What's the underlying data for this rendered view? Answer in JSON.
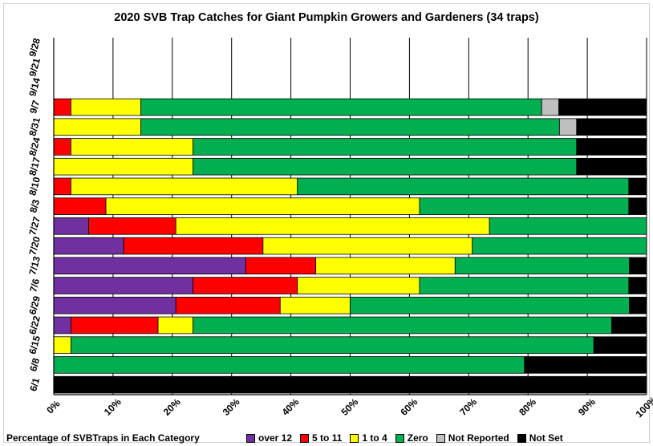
{
  "chart_data": {
    "type": "bar",
    "orientation": "horizontal",
    "stacked": "percent",
    "title": "2020 SVB Trap Catches for Giant Pumpkin Growers and  Gardeners (34 traps)",
    "xlabel": "Percentage of SVBTraps in Each Category",
    "categories": [
      "6/1",
      "6/8",
      "6/15",
      "6/22",
      "6/29",
      "7/6",
      "7/13",
      "7/20",
      "7/27",
      "8/3",
      "8/10",
      "8/17",
      "8/24",
      "8/31",
      "9/7",
      "9/14",
      "9/21",
      "9/28"
    ],
    "x_ticks": [
      "0%",
      "10%",
      "20%",
      "30%",
      "40%",
      "50%",
      "60%",
      "70%",
      "80%",
      "90%",
      "100%"
    ],
    "xlim": [
      0,
      100
    ],
    "grid": "vertical",
    "legend_position": "bottom",
    "series": [
      {
        "name": "over 12",
        "color": "#7030A0",
        "values": [
          0,
          0,
          0,
          2.9,
          20.6,
          23.5,
          32.4,
          11.8,
          5.9,
          0,
          0,
          0,
          0,
          0,
          0,
          0,
          0,
          0
        ]
      },
      {
        "name": "5 to 11",
        "color": "#FF0000",
        "values": [
          0,
          0,
          0,
          14.7,
          17.6,
          17.6,
          11.8,
          23.5,
          14.7,
          8.8,
          2.9,
          0,
          2.9,
          0,
          2.9,
          0,
          0,
          0
        ]
      },
      {
        "name": "1 to 4",
        "color": "#FFFF00",
        "values": [
          0,
          0,
          2.9,
          5.9,
          11.8,
          20.6,
          23.5,
          35.3,
          52.9,
          52.9,
          38.2,
          23.5,
          20.6,
          14.7,
          11.8,
          0,
          0,
          0
        ]
      },
      {
        "name": "Zero",
        "color": "#00B050",
        "values": [
          0,
          79.4,
          88.2,
          70.6,
          47.1,
          35.3,
          29.4,
          29.4,
          26.5,
          35.3,
          55.9,
          64.7,
          64.7,
          70.6,
          67.6,
          0,
          0,
          0
        ]
      },
      {
        "name": "Not Reported",
        "color": "#BFBFBF",
        "values": [
          0,
          0,
          0,
          0,
          0,
          0,
          0,
          0,
          0,
          0,
          0,
          0,
          0,
          2.9,
          2.9,
          0,
          0,
          0
        ]
      },
      {
        "name": "Not Set",
        "color": "#000000",
        "values": [
          100,
          20.6,
          8.8,
          5.9,
          2.9,
          2.9,
          2.9,
          0,
          0,
          2.9,
          2.9,
          11.8,
          11.8,
          11.8,
          14.7,
          0,
          0,
          0
        ]
      }
    ]
  }
}
